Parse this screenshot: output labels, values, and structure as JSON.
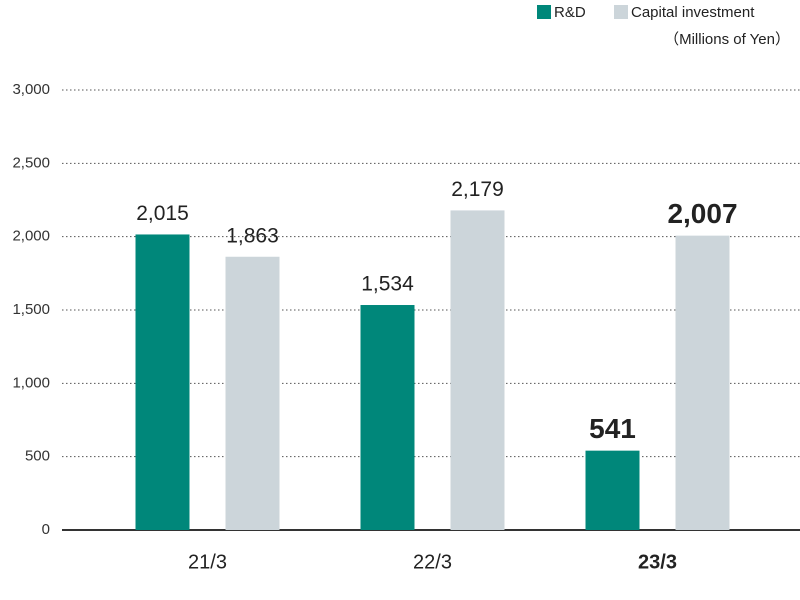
{
  "chart_data": {
    "type": "bar",
    "unit_label": "（Millions of Yen）",
    "categories": [
      "21/3",
      "22/3",
      "23/3"
    ],
    "series": [
      {
        "name": "R&D",
        "color": "#00877a",
        "values": [
          2015,
          1534,
          541
        ],
        "value_labels": [
          "2,015",
          "1,534",
          "541"
        ]
      },
      {
        "name": "Capital investment",
        "color": "#ccd5da",
        "values": [
          1863,
          2179,
          2007
        ],
        "value_labels": [
          "1,863",
          "2,179",
          "2,007"
        ]
      }
    ],
    "ylim": [
      0,
      3000
    ],
    "yticks": [
      0,
      500,
      {
        "value": 1000,
        "label": "1,000"
      },
      {
        "value": 1500,
        "label": "1,500"
      },
      {
        "value": 2000,
        "label": "2,000"
      },
      {
        "value": 2500,
        "label": "2,500"
      },
      {
        "value": 3000,
        "label": "3,000"
      }
    ],
    "grid": true
  }
}
